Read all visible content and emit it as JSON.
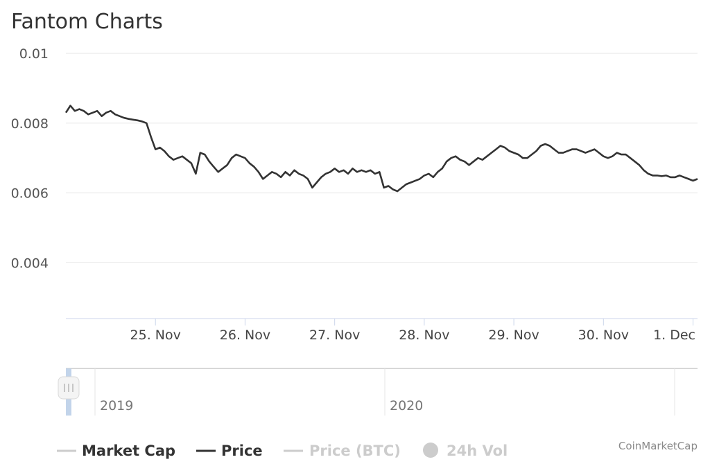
{
  "chart_data": {
    "type": "line",
    "title": "Fantom Charts",
    "credit": "CoinMarketCap",
    "y_ticks": [
      "0.01",
      "0.008",
      "0.006",
      "0.004"
    ],
    "y_tick_values": [
      0.01,
      0.008,
      0.006,
      0.004
    ],
    "ylim": [
      0.0024,
      0.01
    ],
    "x_ticks": [
      "25. Nov",
      "26. Nov",
      "27. Nov",
      "28. Nov",
      "29. Nov",
      "30. Nov",
      "1. Dec"
    ],
    "x_tick_values": [
      1,
      2,
      3,
      4,
      5,
      6,
      7
    ],
    "xlim": [
      0.0,
      7.05
    ],
    "grid": true,
    "legend_position": "bottom",
    "legend": [
      {
        "label": "Market Cap",
        "active": true,
        "color": "#cccccc",
        "text_color": "#333333",
        "marker": "line"
      },
      {
        "label": "Price",
        "active": true,
        "color": "#333333",
        "text_color": "#333333",
        "marker": "line"
      },
      {
        "label": "Price (BTC)",
        "active": false,
        "color": "#cccccc",
        "text_color": "#cccccc",
        "marker": "line"
      },
      {
        "label": "24h Vol",
        "active": false,
        "color": "#cccccc",
        "text_color": "#cccccc",
        "marker": "circle"
      }
    ],
    "series": [
      {
        "name": "Price",
        "color": "#333333",
        "x": [
          0.0,
          0.05,
          0.1,
          0.15,
          0.2,
          0.25,
          0.3,
          0.35,
          0.4,
          0.45,
          0.5,
          0.55,
          0.6,
          0.65,
          0.7,
          0.75,
          0.8,
          0.85,
          0.9,
          0.95,
          1.0,
          1.05,
          1.1,
          1.15,
          1.2,
          1.25,
          1.3,
          1.35,
          1.4,
          1.45,
          1.5,
          1.55,
          1.6,
          1.65,
          1.7,
          1.75,
          1.8,
          1.85,
          1.9,
          1.95,
          2.0,
          2.05,
          2.1,
          2.15,
          2.2,
          2.25,
          2.3,
          2.35,
          2.4,
          2.45,
          2.5,
          2.55,
          2.6,
          2.65,
          2.7,
          2.75,
          2.8,
          2.85,
          2.9,
          2.95,
          3.0,
          3.05,
          3.1,
          3.15,
          3.2,
          3.25,
          3.3,
          3.35,
          3.4,
          3.45,
          3.5,
          3.55,
          3.6,
          3.65,
          3.7,
          3.75,
          3.8,
          3.85,
          3.9,
          3.95,
          4.0,
          4.05,
          4.1,
          4.15,
          4.2,
          4.25,
          4.3,
          4.35,
          4.4,
          4.45,
          4.5,
          4.55,
          4.6,
          4.65,
          4.7,
          4.75,
          4.8,
          4.85,
          4.9,
          4.95,
          5.0,
          5.05,
          5.1,
          5.15,
          5.2,
          5.25,
          5.3,
          5.35,
          5.4,
          5.45,
          5.5,
          5.55,
          5.6,
          5.65,
          5.7,
          5.75,
          5.8,
          5.85,
          5.9,
          5.95,
          6.0,
          6.05,
          6.1,
          6.15,
          6.2,
          6.25,
          6.3,
          6.35,
          6.4,
          6.45,
          6.5,
          6.55,
          6.6,
          6.65,
          6.7,
          6.75,
          6.8,
          6.85,
          6.9,
          6.95,
          7.0,
          7.05
        ],
        "values": [
          0.0083,
          0.0085,
          0.00835,
          0.0084,
          0.00835,
          0.00825,
          0.0083,
          0.00835,
          0.0082,
          0.0083,
          0.00835,
          0.00825,
          0.0082,
          0.00815,
          0.00812,
          0.0081,
          0.00808,
          0.00805,
          0.008,
          0.0076,
          0.00725,
          0.0073,
          0.0072,
          0.00705,
          0.00695,
          0.007,
          0.00705,
          0.00695,
          0.00685,
          0.00655,
          0.00715,
          0.0071,
          0.0069,
          0.00675,
          0.0066,
          0.0067,
          0.0068,
          0.007,
          0.0071,
          0.00705,
          0.007,
          0.00685,
          0.00675,
          0.0066,
          0.0064,
          0.0065,
          0.0066,
          0.00655,
          0.00645,
          0.0066,
          0.0065,
          0.00665,
          0.00655,
          0.0065,
          0.0064,
          0.00615,
          0.0063,
          0.00645,
          0.00655,
          0.0066,
          0.0067,
          0.0066,
          0.00665,
          0.00655,
          0.0067,
          0.0066,
          0.00665,
          0.0066,
          0.00665,
          0.00655,
          0.0066,
          0.00615,
          0.0062,
          0.0061,
          0.00605,
          0.00615,
          0.00625,
          0.0063,
          0.00635,
          0.0064,
          0.0065,
          0.00655,
          0.00645,
          0.0066,
          0.0067,
          0.0069,
          0.007,
          0.00705,
          0.00695,
          0.0069,
          0.0068,
          0.0069,
          0.007,
          0.00695,
          0.00705,
          0.00715,
          0.00725,
          0.00735,
          0.0073,
          0.0072,
          0.00715,
          0.0071,
          0.007,
          0.007,
          0.0071,
          0.0072,
          0.00735,
          0.0074,
          0.00735,
          0.00725,
          0.00715,
          0.00715,
          0.0072,
          0.00725,
          0.00725,
          0.0072,
          0.00715,
          0.0072,
          0.00725,
          0.00715,
          0.00705,
          0.007,
          0.00705,
          0.00715,
          0.0071,
          0.0071,
          0.007,
          0.0069,
          0.0068,
          0.00665,
          0.00655,
          0.0065,
          0.0065,
          0.00648,
          0.0065,
          0.00645,
          0.00645,
          0.0065,
          0.00645,
          0.0064,
          0.00635,
          0.0064
        ]
      }
    ],
    "navigator": {
      "labels": [
        "2019",
        "2020"
      ]
    }
  }
}
